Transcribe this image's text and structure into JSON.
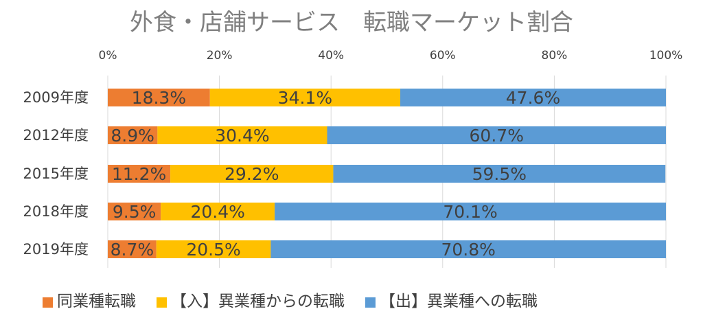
{
  "chart_data": {
    "type": "bar",
    "orientation": "horizontal",
    "stacked": "percent",
    "title": "外食・店舗サービス　転職マーケット割合",
    "categories": [
      "2009年度",
      "2012年度",
      "2015年度",
      "2018年度",
      "2019年度"
    ],
    "series": [
      {
        "name": "同業種転職",
        "color": "#ed7d31",
        "values": [
          18.3,
          8.9,
          11.2,
          9.5,
          8.7
        ]
      },
      {
        "name": "【入】異業種からの転職",
        "color": "#ffc000",
        "values": [
          34.1,
          30.4,
          29.2,
          20.4,
          20.5
        ]
      },
      {
        "name": "【出】異業種への転職",
        "color": "#5b9bd5",
        "values": [
          47.6,
          60.7,
          59.5,
          70.1,
          70.8
        ]
      }
    ],
    "xlim": [
      0,
      100
    ],
    "xticks": [
      "0%",
      "20%",
      "40%",
      "60%",
      "80%",
      "100%"
    ],
    "xtick_values": [
      0,
      20,
      40,
      60,
      80,
      100
    ],
    "xaxis_position": "top",
    "legend_position": "bottom",
    "grid": true,
    "data_label_suffix": "%"
  }
}
